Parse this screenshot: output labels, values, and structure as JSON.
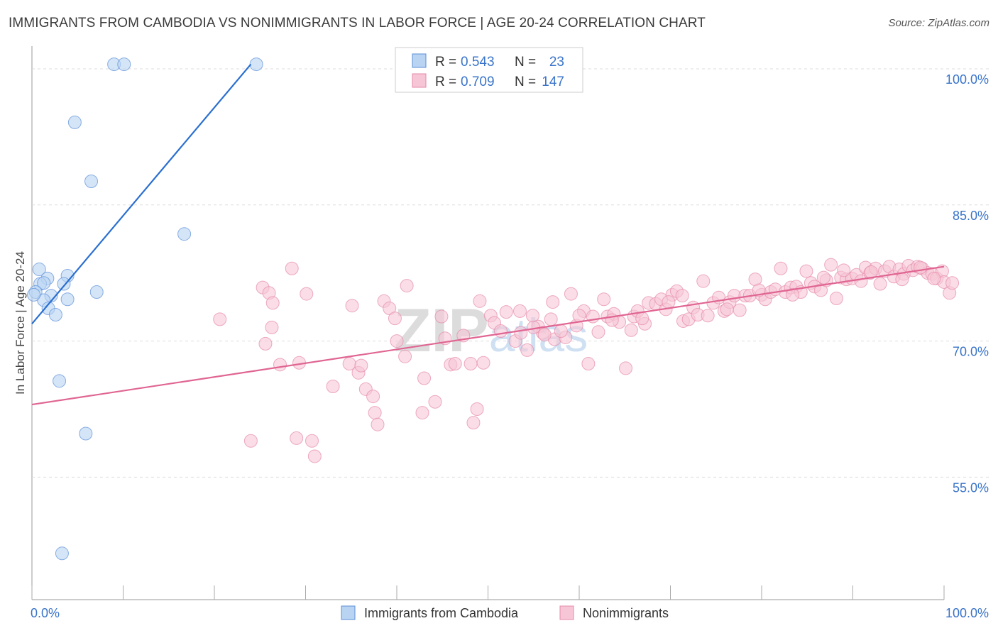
{
  "header": {
    "title": "IMMIGRANTS FROM CAMBODIA VS NONIMMIGRANTS IN LABOR FORCE | AGE 20-24 CORRELATION CHART",
    "source": "Source: ZipAtlas.com"
  },
  "colors": {
    "blue_fill": "#b9d3f3",
    "blue_stroke": "#5b8fd6",
    "blue_line": "#2a6fd0",
    "pink_fill": "#f7c6d6",
    "pink_stroke": "#e68aa9",
    "pink_line": "#e06592",
    "value_text": "#3a74c9",
    "grid": "#dddddd"
  },
  "chart_data": {
    "type": "scatter",
    "title": "IMMIGRANTS FROM CAMBODIA VS NONIMMIGRANTS IN LABOR FORCE | AGE 20-24 CORRELATION CHART",
    "xlabel": "",
    "ylabel": "In Labor Force | Age 20-24",
    "xlim": [
      0,
      100
    ],
    "ylim": [
      41.5,
      102.5
    ],
    "x_tick_labels": [
      "0.0%",
      "100.0%"
    ],
    "y_ticks": [
      {
        "value": 100,
        "label": "100.0%"
      },
      {
        "value": 85,
        "label": "85.0%"
      },
      {
        "value": 70,
        "label": "70.0%"
      },
      {
        "value": 55,
        "label": "55.0%"
      }
    ],
    "grid": true,
    "legend_position": "bottom",
    "stats_box_position": "top-center",
    "watermark": "ZIPatlas",
    "series": [
      {
        "name": "Immigrants from Cambodia",
        "color": "blue",
        "R": "0.543",
        "N": "23",
        "trend": [
          [
            0.0,
            71.9
          ],
          [
            24.0,
            100.5
          ]
        ],
        "points": [
          [
            9.0,
            100.5
          ],
          [
            10.1,
            100.5
          ],
          [
            24.6,
            100.5
          ],
          [
            4.7,
            94.1
          ],
          [
            6.5,
            87.6
          ],
          [
            16.7,
            81.8
          ],
          [
            0.8,
            77.9
          ],
          [
            1.7,
            76.9
          ],
          [
            3.9,
            77.2
          ],
          [
            3.5,
            76.3
          ],
          [
            0.9,
            76.3
          ],
          [
            1.3,
            76.4
          ],
          [
            7.1,
            75.4
          ],
          [
            0.4,
            75.4
          ],
          [
            2.1,
            75.0
          ],
          [
            3.9,
            74.6
          ],
          [
            1.3,
            74.5
          ],
          [
            1.8,
            73.6
          ],
          [
            2.6,
            72.9
          ],
          [
            3.0,
            65.6
          ],
          [
            5.9,
            59.8
          ],
          [
            3.3,
            46.6
          ],
          [
            0.2,
            75.1
          ]
        ]
      },
      {
        "name": "Nonimmigrants",
        "color": "pink",
        "R": "0.709",
        "N": "147",
        "trend": [
          [
            0.0,
            63.0
          ],
          [
            100.0,
            78.2
          ]
        ],
        "points": [
          [
            28.5,
            78.0
          ],
          [
            20.6,
            72.4
          ],
          [
            25.3,
            75.9
          ],
          [
            26.0,
            75.3
          ],
          [
            26.4,
            74.2
          ],
          [
            25.6,
            69.7
          ],
          [
            26.3,
            71.5
          ],
          [
            27.2,
            67.4
          ],
          [
            29.3,
            67.6
          ],
          [
            30.1,
            75.2
          ],
          [
            29.0,
            59.3
          ],
          [
            30.7,
            59.0
          ],
          [
            31.0,
            57.3
          ],
          [
            24.0,
            59.0
          ],
          [
            33.0,
            65.0
          ],
          [
            34.8,
            67.5
          ],
          [
            35.8,
            66.5
          ],
          [
            35.1,
            73.9
          ],
          [
            36.1,
            67.3
          ],
          [
            36.6,
            64.7
          ],
          [
            37.4,
            63.9
          ],
          [
            37.6,
            62.1
          ],
          [
            37.9,
            60.8
          ],
          [
            38.6,
            74.4
          ],
          [
            39.2,
            73.6
          ],
          [
            39.8,
            72.5
          ],
          [
            40.0,
            70.0
          ],
          [
            40.9,
            68.3
          ],
          [
            41.1,
            76.1
          ],
          [
            42.8,
            62.1
          ],
          [
            43.0,
            65.9
          ],
          [
            44.2,
            63.3
          ],
          [
            44.9,
            72.7
          ],
          [
            45.3,
            70.3
          ],
          [
            45.9,
            67.4
          ],
          [
            46.4,
            67.5
          ],
          [
            47.3,
            70.6
          ],
          [
            48.1,
            67.5
          ],
          [
            48.4,
            61.0
          ],
          [
            48.8,
            62.5
          ],
          [
            49.1,
            74.4
          ],
          [
            49.5,
            67.6
          ],
          [
            50.3,
            72.8
          ],
          [
            50.7,
            72.0
          ],
          [
            51.4,
            71.1
          ],
          [
            52.0,
            73.2
          ],
          [
            53.0,
            70.0
          ],
          [
            53.6,
            70.9
          ],
          [
            54.3,
            69.0
          ],
          [
            54.9,
            72.8
          ],
          [
            55.5,
            71.6
          ],
          [
            56.0,
            70.9
          ],
          [
            56.9,
            72.4
          ],
          [
            57.3,
            70.2
          ],
          [
            57.1,
            74.3
          ],
          [
            58.5,
            70.4
          ],
          [
            59.1,
            75.2
          ],
          [
            59.7,
            71.7
          ],
          [
            60.5,
            73.3
          ],
          [
            61.0,
            67.5
          ],
          [
            61.5,
            72.7
          ],
          [
            62.1,
            71.0
          ],
          [
            62.7,
            74.6
          ],
          [
            63.1,
            72.7
          ],
          [
            63.8,
            73.0
          ],
          [
            64.4,
            72.1
          ],
          [
            65.1,
            67.0
          ],
          [
            65.7,
            71.2
          ],
          [
            66.0,
            72.7
          ],
          [
            66.4,
            73.3
          ],
          [
            67.2,
            71.9
          ],
          [
            67.6,
            74.2
          ],
          [
            68.4,
            74.1
          ],
          [
            69.0,
            74.6
          ],
          [
            69.5,
            73.5
          ],
          [
            70.2,
            75.1
          ],
          [
            70.7,
            75.5
          ],
          [
            71.4,
            72.2
          ],
          [
            72.0,
            72.4
          ],
          [
            72.5,
            73.7
          ],
          [
            73.0,
            72.9
          ],
          [
            73.6,
            76.6
          ],
          [
            74.1,
            72.8
          ],
          [
            74.7,
            74.2
          ],
          [
            75.3,
            74.8
          ],
          [
            75.9,
            73.3
          ],
          [
            76.5,
            74.3
          ],
          [
            77.0,
            75.0
          ],
          [
            77.6,
            73.4
          ],
          [
            78.2,
            75.0
          ],
          [
            78.7,
            75.0
          ],
          [
            79.3,
            76.8
          ],
          [
            80.0,
            75.1
          ],
          [
            80.4,
            74.6
          ],
          [
            81.0,
            75.4
          ],
          [
            81.5,
            75.7
          ],
          [
            82.1,
            78.0
          ],
          [
            82.6,
            75.4
          ],
          [
            83.2,
            75.9
          ],
          [
            83.8,
            76.0
          ],
          [
            84.3,
            75.4
          ],
          [
            84.9,
            77.7
          ],
          [
            85.4,
            76.4
          ],
          [
            85.8,
            76.0
          ],
          [
            86.5,
            75.6
          ],
          [
            87.1,
            76.7
          ],
          [
            87.6,
            78.4
          ],
          [
            88.2,
            74.7
          ],
          [
            88.7,
            77.0
          ],
          [
            89.3,
            76.8
          ],
          [
            89.9,
            76.9
          ],
          [
            90.4,
            77.3
          ],
          [
            90.9,
            76.6
          ],
          [
            91.4,
            78.1
          ],
          [
            91.9,
            77.5
          ],
          [
            92.5,
            78.0
          ],
          [
            93.0,
            76.3
          ],
          [
            93.5,
            77.7
          ],
          [
            94.0,
            78.2
          ],
          [
            94.5,
            77.1
          ],
          [
            95.1,
            77.9
          ],
          [
            95.6,
            77.4
          ],
          [
            96.1,
            78.3
          ],
          [
            96.6,
            77.8
          ],
          [
            97.1,
            78.2
          ],
          [
            97.6,
            78.0
          ],
          [
            98.2,
            77.5
          ],
          [
            98.7,
            77.4
          ],
          [
            99.2,
            76.9
          ],
          [
            99.8,
            77.7
          ],
          [
            100.0,
            76.5
          ],
          [
            100.6,
            75.3
          ],
          [
            100.9,
            76.4
          ],
          [
            69.8,
            74.3
          ],
          [
            71.3,
            75.0
          ],
          [
            58.0,
            71.1
          ],
          [
            53.5,
            73.3
          ],
          [
            56.2,
            70.7
          ],
          [
            76.2,
            73.5
          ],
          [
            79.7,
            75.6
          ],
          [
            83.4,
            75.1
          ],
          [
            86.8,
            77.0
          ],
          [
            89.0,
            77.8
          ],
          [
            92.0,
            77.6
          ],
          [
            95.4,
            76.8
          ],
          [
            97.4,
            78.1
          ],
          [
            98.9,
            76.9
          ],
          [
            66.9,
            72.5
          ],
          [
            63.6,
            72.3
          ],
          [
            60.0,
            72.8
          ],
          [
            55.0,
            71.5
          ]
        ]
      }
    ]
  }
}
